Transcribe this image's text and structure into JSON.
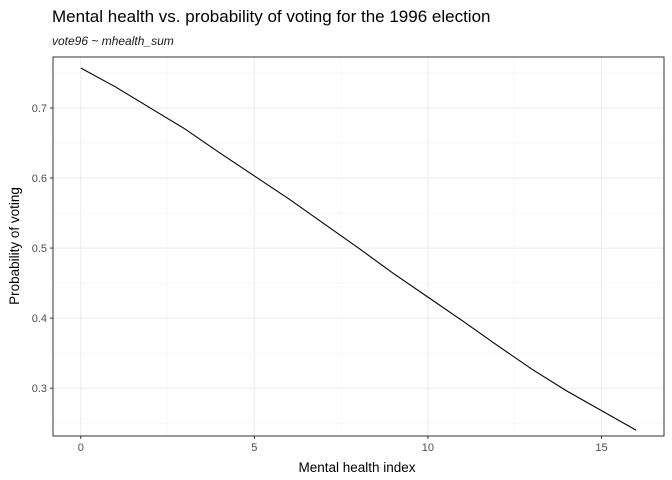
{
  "chart_data": {
    "type": "line",
    "title": "Mental health vs. probability of voting for the 1996 election",
    "subtitle": "vote96 ~ mhealth_sum",
    "xlabel": "Mental health index",
    "ylabel": "Probability of voting",
    "xlim": [
      -0.8,
      16.8
    ],
    "ylim": [
      0.2318,
      0.7727
    ],
    "x_ticks": [
      0,
      5,
      10,
      15
    ],
    "x_tick_labels": [
      "0",
      "5",
      "10",
      "15"
    ],
    "y_ticks": [
      0.3,
      0.4,
      0.5,
      0.6,
      0.7
    ],
    "y_tick_labels": [
      "0.3",
      "0.4",
      "0.5",
      "0.6",
      "0.7"
    ],
    "grid": true,
    "legend": "none",
    "series": [
      {
        "color": "#000000",
        "x": [
          0,
          1,
          2,
          3,
          4,
          5,
          6,
          7,
          8,
          9,
          10,
          11,
          12,
          13,
          14,
          15,
          16
        ],
        "y": [
          0.757,
          0.73,
          0.7,
          0.67,
          0.636,
          0.603,
          0.57,
          0.535,
          0.5,
          0.464,
          0.43,
          0.396,
          0.361,
          0.327,
          0.296,
          0.268,
          0.24
        ]
      }
    ]
  }
}
